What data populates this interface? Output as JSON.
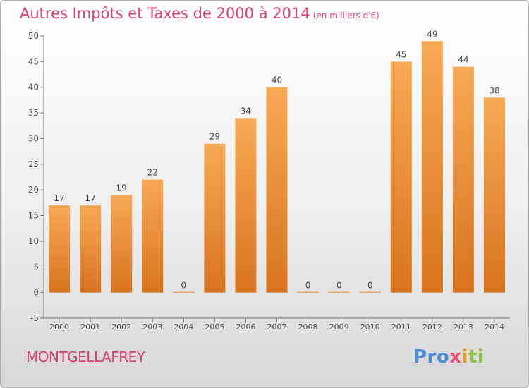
{
  "title": "Autres Impôts et Taxes de 2000 à 2014",
  "subtitle": "(en milliers d'€)",
  "commune": "MONTGELLAFREY",
  "logo": {
    "text": "Proxiti",
    "colors": [
      "#4d8fd6",
      "#f0a020",
      "#8bc34a",
      "#e94e77"
    ]
  },
  "colors": {
    "accent": "#d9426d",
    "bar_light": "#f7a954",
    "bar_dark": "#d9731e",
    "axis": "#777777"
  },
  "chart_data": {
    "type": "bar",
    "title": "Autres Impôts et Taxes de 2000 à 2014",
    "subtitle": "(en milliers d'€)",
    "xlabel": "",
    "ylabel": "",
    "categories": [
      "2000",
      "2001",
      "2002",
      "2003",
      "2004",
      "2005",
      "2006",
      "2007",
      "2008",
      "2009",
      "2010",
      "2011",
      "2012",
      "2013",
      "2014"
    ],
    "values": [
      17,
      17,
      19,
      22,
      0,
      29,
      34,
      40,
      0,
      0,
      0,
      45,
      49,
      44,
      38
    ],
    "ylim": [
      -5,
      50
    ],
    "yticks": [
      -5,
      0,
      5,
      10,
      15,
      20,
      25,
      30,
      35,
      40,
      45,
      50
    ],
    "grid": false,
    "legend": "none"
  }
}
